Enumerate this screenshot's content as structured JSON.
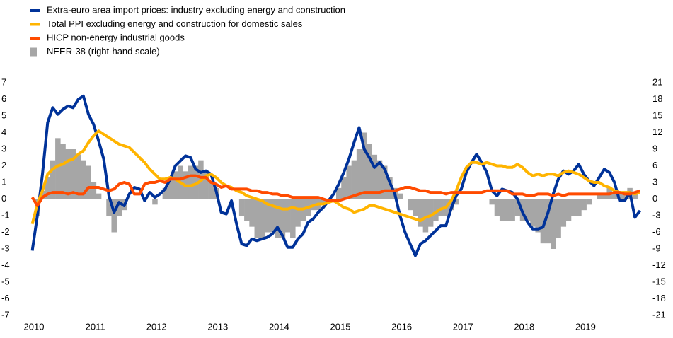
{
  "chart_data": {
    "type": "line",
    "categories": [
      "2010",
      null,
      null,
      null,
      null,
      null,
      null,
      null,
      null,
      null,
      null,
      null,
      "2011",
      null,
      null,
      null,
      null,
      null,
      null,
      null,
      null,
      null,
      null,
      null,
      "2012",
      null,
      null,
      null,
      null,
      null,
      null,
      null,
      null,
      null,
      null,
      null,
      "2013",
      null,
      null,
      null,
      null,
      null,
      null,
      null,
      null,
      null,
      null,
      null,
      "2014",
      null,
      null,
      null,
      null,
      null,
      null,
      null,
      null,
      null,
      null,
      null,
      "2015",
      null,
      null,
      null,
      null,
      null,
      null,
      null,
      null,
      null,
      null,
      null,
      "2016",
      null,
      null,
      null,
      null,
      null,
      null,
      null,
      null,
      null,
      null,
      null,
      "2017",
      null,
      null,
      null,
      null,
      null,
      null,
      null,
      null,
      null,
      null,
      null,
      "2018",
      null,
      null,
      null,
      null,
      null,
      null,
      null,
      null,
      null,
      null,
      null,
      "2019",
      null,
      null,
      null,
      null,
      null,
      null,
      null,
      null,
      null,
      null,
      null
    ],
    "series": [
      {
        "name": "NEER-38 (right-hand scale)",
        "type": "bar",
        "axis": "y2",
        "color": "#a6a6a6",
        "values": [
          0,
          -3,
          1.5,
          4,
          7,
          11,
          10,
          9,
          9,
          8,
          7,
          6,
          3,
          1,
          0,
          -3,
          -6,
          -3,
          -2,
          0,
          0,
          0,
          0,
          0,
          -1,
          0,
          2,
          4,
          5,
          6,
          5,
          6,
          6,
          7,
          5,
          3,
          2,
          0,
          0,
          0,
          0,
          -3,
          -4,
          -5,
          -7,
          -7,
          -6,
          -6,
          -7,
          -7,
          -6,
          -7,
          -5,
          -4,
          -3,
          -2,
          -2,
          -1,
          0,
          0,
          2,
          4,
          6,
          7,
          9,
          12,
          10,
          8,
          7,
          6,
          4,
          2,
          1,
          0,
          -2,
          -3,
          -5,
          -6,
          -5,
          -4,
          -3,
          -3,
          -2,
          -1,
          0,
          0,
          0,
          0,
          0,
          0,
          -1,
          -3,
          -4,
          -4,
          -4,
          -3,
          -4,
          -4,
          -5,
          -6,
          -8,
          -8,
          -9,
          -7,
          -5,
          -4,
          -3,
          -3,
          -2,
          -1,
          0,
          1,
          1,
          2,
          1,
          1,
          1,
          2,
          1,
          0
        ]
      },
      {
        "name": "Extra-euro area import prices: industry excluding energy and construction",
        "type": "line",
        "color": "#003299",
        "values": [
          -3.1,
          -1.0,
          1.5,
          4.6,
          5.5,
          5.1,
          5.4,
          5.6,
          5.5,
          6.0,
          6.2,
          5.1,
          4.5,
          3.5,
          2.4,
          0.2,
          -0.8,
          -0.2,
          -0.4,
          0.3,
          0.7,
          0.6,
          -0.1,
          0.4,
          0.1,
          0.3,
          0.6,
          1.2,
          2.0,
          2.3,
          2.6,
          2.5,
          1.8,
          1.6,
          1.7,
          1.5,
          0.5,
          -0.8,
          -0.9,
          -0.1,
          -1.5,
          -2.7,
          -2.8,
          -2.4,
          -2.5,
          -2.4,
          -2.3,
          -2.1,
          -1.7,
          -2.2,
          -2.9,
          -2.9,
          -2.4,
          -2.1,
          -1.4,
          -1.2,
          -0.8,
          -0.5,
          -0.1,
          0.3,
          0.9,
          1.6,
          2.4,
          3.4,
          4.3,
          3.0,
          2.5,
          1.9,
          2.2,
          1.8,
          1.0,
          0.3,
          -1.0,
          -2.0,
          -2.7,
          -3.4,
          -2.7,
          -2.5,
          -2.2,
          -1.9,
          -1.6,
          -1.6,
          -0.6,
          0.2,
          0.6,
          1.6,
          2.2,
          2.7,
          2.2,
          1.6,
          0.5,
          0.2,
          0.6,
          0.5,
          0.4,
          0.0,
          -0.8,
          -1.4,
          -1.8,
          -1.8,
          -1.7,
          -0.8,
          0.3,
          1.2,
          1.7,
          1.5,
          1.7,
          2.1,
          1.5,
          1.1,
          0.8,
          1.3,
          1.8,
          1.6,
          1.0,
          -0.1,
          -0.1,
          0.4,
          -1.1,
          -0.7
        ]
      },
      {
        "name": "Total PPI excluding energy and construction for domestic sales",
        "type": "line",
        "color": "#ffb400",
        "values": [
          -1.5,
          -0.3,
          0.5,
          1.5,
          1.8,
          2.0,
          2.1,
          2.3,
          2.4,
          2.7,
          2.9,
          3.4,
          3.8,
          4.1,
          3.9,
          3.7,
          3.5,
          3.3,
          3.2,
          3.1,
          2.8,
          2.5,
          2.2,
          1.8,
          1.5,
          1.2,
          1.2,
          1.3,
          1.2,
          1.0,
          0.8,
          0.8,
          0.9,
          1.1,
          1.4,
          1.5,
          1.3,
          1.0,
          0.8,
          0.7,
          0.5,
          0.4,
          0.2,
          0.1,
          0.0,
          -0.1,
          -0.3,
          -0.4,
          -0.5,
          -0.6,
          -0.6,
          -0.5,
          -0.6,
          -0.6,
          -0.5,
          -0.4,
          -0.3,
          -0.3,
          -0.2,
          -0.1,
          -0.3,
          -0.5,
          -0.6,
          -0.8,
          -0.7,
          -0.6,
          -0.4,
          -0.4,
          -0.5,
          -0.6,
          -0.7,
          -0.8,
          -0.9,
          -1.0,
          -1.1,
          -1.2,
          -1.3,
          -1.1,
          -1.0,
          -0.8,
          -0.6,
          -0.5,
          -0.1,
          0.5,
          1.3,
          1.9,
          2.2,
          2.2,
          2.1,
          2.2,
          2.1,
          2.0,
          2.0,
          1.9,
          1.9,
          2.1,
          1.9,
          1.6,
          1.4,
          1.5,
          1.4,
          1.5,
          1.5,
          1.4,
          1.6,
          1.7,
          1.6,
          1.5,
          1.3,
          1.1,
          1.0,
          1.0,
          0.8,
          0.7,
          0.5,
          0.4,
          0.4,
          0.4,
          0.3,
          0.4
        ]
      },
      {
        "name": "HICP non-energy industrial goods",
        "type": "line",
        "color": "#ff4b00",
        "values": [
          0.1,
          -0.4,
          0.1,
          0.3,
          0.4,
          0.4,
          0.4,
          0.3,
          0.4,
          0.3,
          0.3,
          0.7,
          0.7,
          0.7,
          0.6,
          0.5,
          0.6,
          0.9,
          1.0,
          0.9,
          0.3,
          0.3,
          0.9,
          1.0,
          1.0,
          1.1,
          1.0,
          1.2,
          1.2,
          1.2,
          1.3,
          1.4,
          1.4,
          1.3,
          1.3,
          1.0,
          0.9,
          0.7,
          0.8,
          0.6,
          0.6,
          0.6,
          0.6,
          0.5,
          0.5,
          0.4,
          0.4,
          0.3,
          0.3,
          0.2,
          0.2,
          0.1,
          0.1,
          0.1,
          0.1,
          0.1,
          0.1,
          0.0,
          -0.1,
          -0.1,
          -0.1,
          0.0,
          0.1,
          0.2,
          0.3,
          0.4,
          0.4,
          0.4,
          0.4,
          0.5,
          0.5,
          0.5,
          0.6,
          0.7,
          0.7,
          0.6,
          0.5,
          0.5,
          0.4,
          0.4,
          0.4,
          0.3,
          0.4,
          0.4,
          0.4,
          0.4,
          0.4,
          0.4,
          0.4,
          0.5,
          0.5,
          0.5,
          0.5,
          0.5,
          0.3,
          0.3,
          0.3,
          0.2,
          0.2,
          0.3,
          0.3,
          0.3,
          0.2,
          0.3,
          0.2,
          0.3,
          0.3,
          0.3,
          0.3,
          0.3,
          0.3,
          0.3,
          0.3,
          0.3,
          0.4,
          0.4,
          0.3,
          0.3,
          0.4,
          0.5
        ]
      }
    ],
    "legend_order": [
      1,
      2,
      3,
      0
    ],
    "ylim": [
      -7,
      7
    ],
    "yticks": [
      -7,
      -6,
      -5,
      -4,
      -3,
      -2,
      -1,
      0,
      1,
      2,
      3,
      4,
      5,
      6,
      7
    ],
    "y2lim": [
      -21,
      21
    ],
    "y2ticks": [
      -21,
      -18,
      -15,
      -12,
      -9,
      -6,
      -3,
      0,
      3,
      6,
      9,
      12,
      15,
      18,
      21
    ]
  }
}
